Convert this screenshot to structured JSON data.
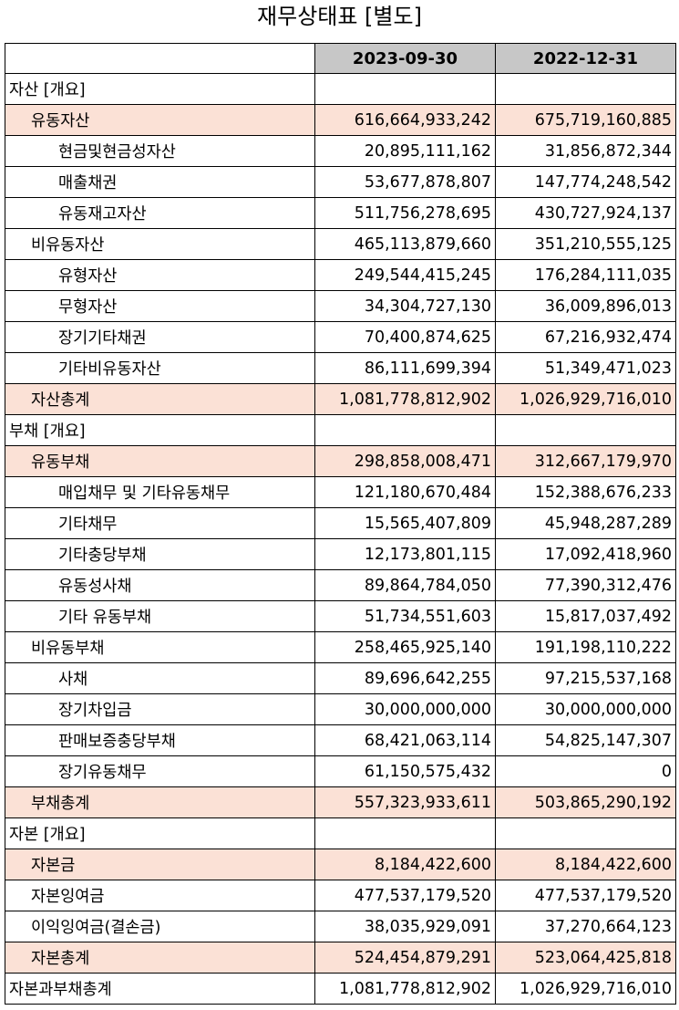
{
  "title": "재무상태표 [별도]",
  "columns": [
    "",
    "2023-09-30",
    "2022-12-31"
  ],
  "rows": [
    {
      "label": "자산 [개요]",
      "level": 0,
      "highlight": false,
      "v1": "",
      "v2": ""
    },
    {
      "label": "유동자산",
      "level": 1,
      "highlight": true,
      "v1": "616,664,933,242",
      "v2": "675,719,160,885"
    },
    {
      "label": "현금및현금성자산",
      "level": 2,
      "highlight": false,
      "v1": "20,895,111,162",
      "v2": "31,856,872,344"
    },
    {
      "label": "매출채권",
      "level": 2,
      "highlight": false,
      "v1": "53,677,878,807",
      "v2": "147,774,248,542"
    },
    {
      "label": "유동재고자산",
      "level": 2,
      "highlight": false,
      "v1": "511,756,278,695",
      "v2": "430,727,924,137"
    },
    {
      "label": "비유동자산",
      "level": 1,
      "highlight": false,
      "v1": "465,113,879,660",
      "v2": "351,210,555,125"
    },
    {
      "label": "유형자산",
      "level": 2,
      "highlight": false,
      "v1": "249,544,415,245",
      "v2": "176,284,111,035"
    },
    {
      "label": "무형자산",
      "level": 2,
      "highlight": false,
      "v1": "34,304,727,130",
      "v2": "36,009,896,013"
    },
    {
      "label": "장기기타채권",
      "level": 2,
      "highlight": false,
      "v1": "70,400,874,625",
      "v2": "67,216,932,474"
    },
    {
      "label": "기타비유동자산",
      "level": 2,
      "highlight": false,
      "v1": "86,111,699,394",
      "v2": "51,349,471,023"
    },
    {
      "label": "자산총계",
      "level": 1,
      "highlight": true,
      "v1": "1,081,778,812,902",
      "v2": "1,026,929,716,010"
    },
    {
      "label": "부채 [개요]",
      "level": 0,
      "highlight": false,
      "v1": "",
      "v2": ""
    },
    {
      "label": "유동부채",
      "level": 1,
      "highlight": true,
      "v1": "298,858,008,471",
      "v2": "312,667,179,970"
    },
    {
      "label": "매입채무 및 기타유동채무",
      "level": 2,
      "highlight": false,
      "v1": "121,180,670,484",
      "v2": "152,388,676,233"
    },
    {
      "label": "기타채무",
      "level": 2,
      "highlight": false,
      "v1": "15,565,407,809",
      "v2": "45,948,287,289"
    },
    {
      "label": "기타충당부채",
      "level": 2,
      "highlight": false,
      "v1": "12,173,801,115",
      "v2": "17,092,418,960"
    },
    {
      "label": "유동성사채",
      "level": 2,
      "highlight": false,
      "v1": "89,864,784,050",
      "v2": "77,390,312,476"
    },
    {
      "label": "기타 유동부채",
      "level": 2,
      "highlight": false,
      "v1": "51,734,551,603",
      "v2": "15,817,037,492"
    },
    {
      "label": "비유동부채",
      "level": 1,
      "highlight": false,
      "v1": "258,465,925,140",
      "v2": "191,198,110,222"
    },
    {
      "label": "사채",
      "level": 2,
      "highlight": false,
      "v1": "89,696,642,255",
      "v2": "97,215,537,168"
    },
    {
      "label": "장기차입금",
      "level": 2,
      "highlight": false,
      "v1": "30,000,000,000",
      "v2": "30,000,000,000"
    },
    {
      "label": "판매보증충당부채",
      "level": 2,
      "highlight": false,
      "v1": "68,421,063,114",
      "v2": "54,825,147,307"
    },
    {
      "label": "장기유동채무",
      "level": 2,
      "highlight": false,
      "v1": "61,150,575,432",
      "v2": "0"
    },
    {
      "label": "부채총계",
      "level": 1,
      "highlight": true,
      "v1": "557,323,933,611",
      "v2": "503,865,290,192"
    },
    {
      "label": "자본 [개요]",
      "level": 0,
      "highlight": false,
      "v1": "",
      "v2": ""
    },
    {
      "label": "자본금",
      "level": 1,
      "highlight": true,
      "v1": "8,184,422,600",
      "v2": "8,184,422,600"
    },
    {
      "label": "자본잉여금",
      "level": 1,
      "highlight": false,
      "v1": "477,537,179,520",
      "v2": "477,537,179,520"
    },
    {
      "label": "이익잉여금(결손금)",
      "level": 1,
      "highlight": false,
      "v1": "38,035,929,091",
      "v2": "37,270,664,123"
    },
    {
      "label": "자본총계",
      "level": 1,
      "highlight": true,
      "v1": "524,454,879,291",
      "v2": "523,064,425,818"
    },
    {
      "label": "자본과부채총계",
      "level": 0,
      "highlight": false,
      "v1": "1,081,778,812,902",
      "v2": "1,026,929,716,010"
    }
  ],
  "colors": {
    "header_bg": "#c7c7c7",
    "highlight_bg": "#fbe1d6"
  }
}
